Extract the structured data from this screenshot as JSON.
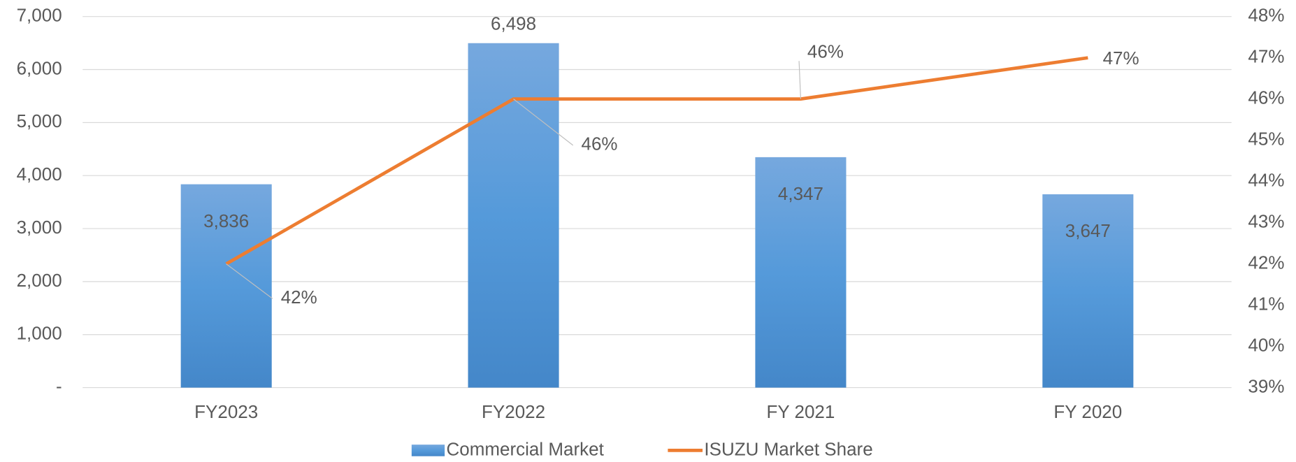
{
  "chart_data": {
    "type": "bar_line",
    "categories": [
      "FY2023",
      "FY2022",
      "FY 2021",
      "FY 2020"
    ],
    "series": [
      {
        "name": "Commercial Market",
        "type": "bar",
        "color": "#5b9bd5",
        "values": [
          3836,
          6498,
          4347,
          3647
        ],
        "value_labels": [
          "3,836",
          "6,498",
          "4,347",
          "3,647"
        ]
      },
      {
        "name": "ISUZU Market Share",
        "type": "line",
        "axis": "y2",
        "color": "#ed7d31",
        "values": [
          42,
          46,
          46,
          47
        ],
        "value_labels": [
          "42%",
          "46%",
          "46%",
          "47%"
        ]
      }
    ],
    "ylim": [
      0,
      7000
    ],
    "yticks": [
      {
        "value": 0,
        "label": "-"
      },
      {
        "value": 1000,
        "label": "1,000"
      },
      {
        "value": 2000,
        "label": "2,000"
      },
      {
        "value": 3000,
        "label": "3,000"
      },
      {
        "value": 4000,
        "label": "4,000"
      },
      {
        "value": 5000,
        "label": "5,000"
      },
      {
        "value": 6000,
        "label": "6,000"
      },
      {
        "value": 7000,
        "label": "7,000"
      }
    ],
    "y2lim": [
      39,
      48
    ],
    "y2ticks": [
      {
        "value": 39,
        "label": "39%"
      },
      {
        "value": 40,
        "label": "40%"
      },
      {
        "value": 41,
        "label": "41%"
      },
      {
        "value": 42,
        "label": "42%"
      },
      {
        "value": 43,
        "label": "43%"
      },
      {
        "value": 44,
        "label": "44%"
      },
      {
        "value": 45,
        "label": "45%"
      },
      {
        "value": 46,
        "label": "46%"
      },
      {
        "value": 47,
        "label": "47%"
      },
      {
        "value": 48,
        "label": "48%"
      }
    ],
    "grid": true,
    "legend": "bottom"
  }
}
